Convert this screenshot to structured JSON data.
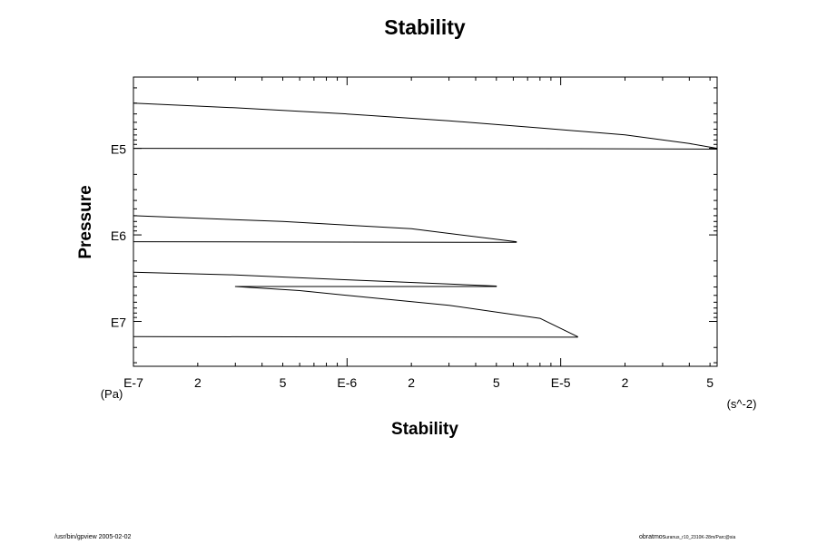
{
  "footer": {
    "left": "/usr/bin/gpview 2005-02-02",
    "right": "obratmos",
    "right_sub": "uranus_r10_2310K-28m/Parc@sia"
  },
  "chart_data": {
    "type": "line",
    "title": "Stability",
    "xlabel": "Stability",
    "ylabel": "Pressure",
    "x_unit": "(s^-2)",
    "y_unit": "(Pa)",
    "x_scale": "log",
    "y_scale": "log",
    "y_inverted": true,
    "xlim": [
      1e-07,
      5.4e-05
    ],
    "ylim": [
      15000,
      33000000
    ],
    "grid": false,
    "x_ticks": [
      {
        "value": 1e-07,
        "label": "E-7"
      },
      {
        "value": 2e-07,
        "label": "2"
      },
      {
        "value": 5e-07,
        "label": "5"
      },
      {
        "value": 1e-06,
        "label": "E-6"
      },
      {
        "value": 2e-06,
        "label": "2"
      },
      {
        "value": 5e-06,
        "label": "5"
      },
      {
        "value": 1e-05,
        "label": "E-5"
      },
      {
        "value": 2e-05,
        "label": "2"
      },
      {
        "value": 5e-05,
        "label": "5"
      }
    ],
    "y_ticks": [
      {
        "value": 100000,
        "label": "E5"
      },
      {
        "value": 1000000,
        "label": "E6"
      },
      {
        "value": 10000000,
        "label": "E7"
      }
    ],
    "series": [
      {
        "x": [
          1e-07,
          3e-07,
          1e-06,
          3e-06,
          8e-06,
          2e-05,
          4e-05,
          5.4e-05,
          5.4e-05,
          1e-05,
          1e-06,
          1e-07
        ],
        "y": [
          30000,
          34000,
          40000,
          48000,
          58000,
          70000,
          88000,
          100000,
          102000,
          101000,
          100500,
          100000
        ]
      },
      {
        "x": [
          1e-07,
          5e-07,
          2e-06,
          6.2e-06,
          6.2e-06,
          1e-06,
          1e-07
        ],
        "y": [
          600000,
          700000,
          850000,
          1200000,
          1220000,
          1210000,
          1200000
        ]
      },
      {
        "x": [
          1e-07,
          3e-07,
          1e-06,
          3e-06,
          5e-06,
          5e-06,
          1e-06,
          3e-07,
          3e-07,
          6e-07,
          1e-06,
          3e-06,
          8e-06,
          1.2e-05,
          1.2e-05,
          1e-06,
          1e-07
        ],
        "y": [
          2700000,
          2900000,
          3300000,
          3700000,
          3900000,
          3950000,
          3950000,
          3950000,
          3950000,
          4400000,
          5000000,
          6500000,
          9200000,
          15000000,
          15200000,
          15100000,
          15000000
        ]
      }
    ]
  }
}
